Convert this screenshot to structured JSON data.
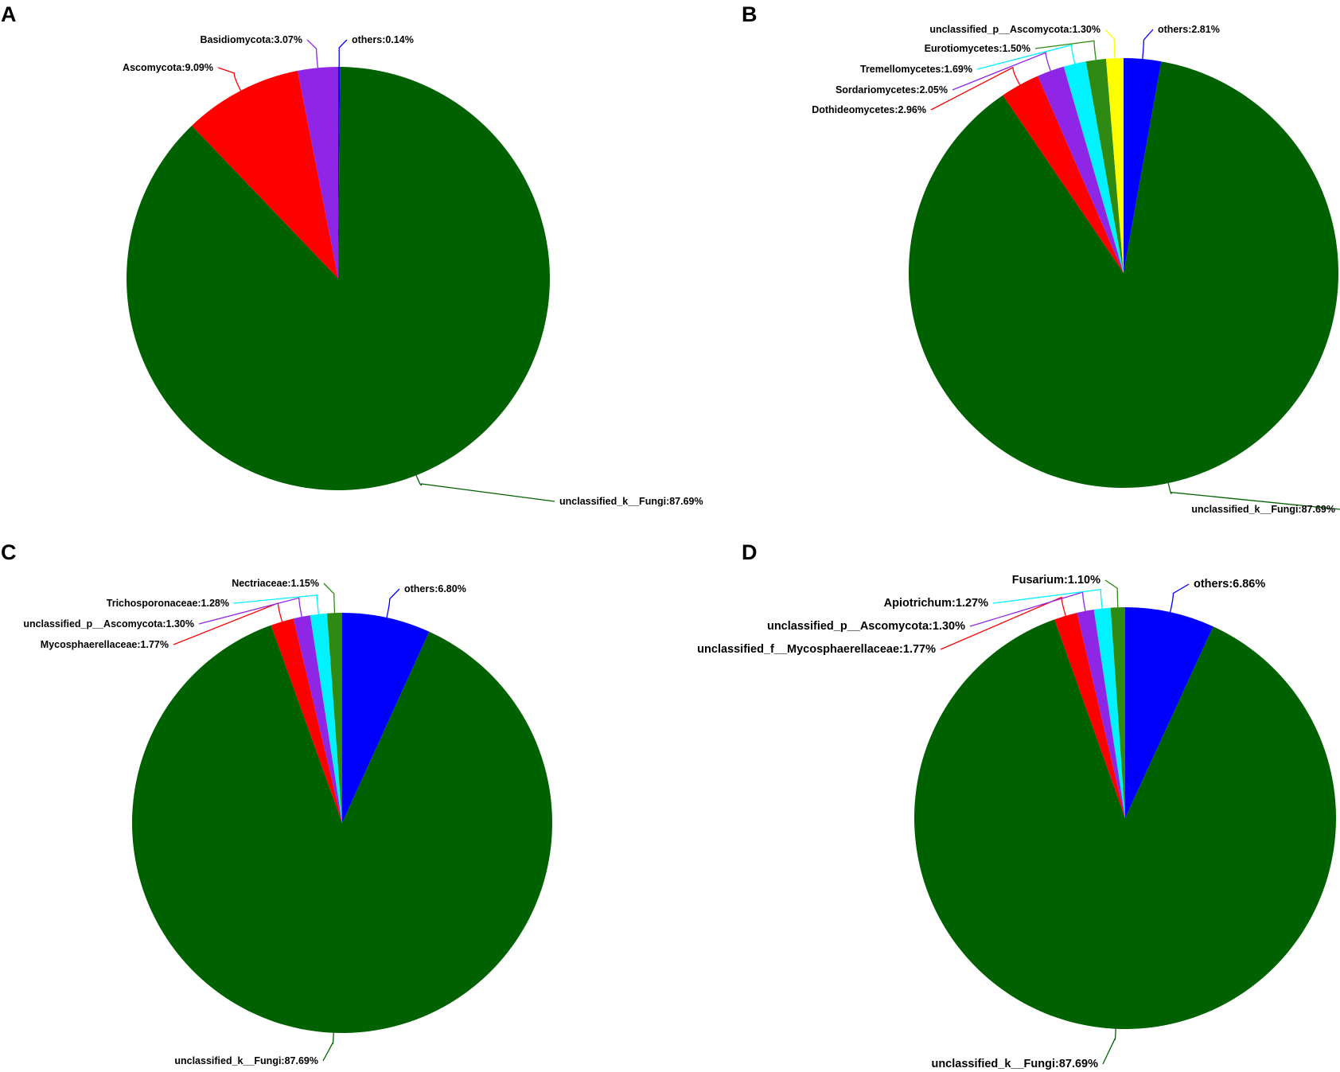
{
  "figure": {
    "panels": [
      "A",
      "B",
      "C",
      "D"
    ]
  },
  "chart_data": [
    {
      "panel": "A",
      "type": "pie",
      "slices": [
        {
          "label": "others:0.14%",
          "value": 0.14,
          "color": "#0000ff"
        },
        {
          "label": "unclassified_k__Fungi:87.69%",
          "value": 87.69,
          "color": "#006100"
        },
        {
          "label": "Ascomycota:9.09%",
          "value": 9.09,
          "color": "#ff0000"
        },
        {
          "label": "Basidiomycota:3.07%",
          "value": 3.07,
          "color": "#8f26e6"
        }
      ]
    },
    {
      "panel": "B",
      "type": "pie",
      "slices": [
        {
          "label": "others:2.81%",
          "value": 2.81,
          "color": "#0000ff"
        },
        {
          "label": "unclassified_k__Fungi:87.69%",
          "value": 87.69,
          "color": "#006100"
        },
        {
          "label": "Dothideomycetes:2.96%",
          "value": 2.96,
          "color": "#ff0000"
        },
        {
          "label": "Sordariomycetes:2.05%",
          "value": 2.05,
          "color": "#8f26e6"
        },
        {
          "label": "Tremellomycetes:1.69%",
          "value": 1.69,
          "color": "#00f2ff"
        },
        {
          "label": "Eurotiomycetes:1.50%",
          "value": 1.5,
          "color": "#2e8a12"
        },
        {
          "label": "unclassified_p__Ascomycota:1.30%",
          "value": 1.3,
          "color": "#ffff00"
        }
      ]
    },
    {
      "panel": "C",
      "type": "pie",
      "slices": [
        {
          "label": "others:6.80%",
          "value": 6.8,
          "color": "#0000ff"
        },
        {
          "label": "unclassified_k__Fungi:87.69%",
          "value": 87.69,
          "color": "#006100"
        },
        {
          "label": "Mycosphaerellaceae:1.77%",
          "value": 1.77,
          "color": "#ff0000"
        },
        {
          "label": "unclassified_p__Ascomycota:1.30%",
          "value": 1.3,
          "color": "#8f26e6"
        },
        {
          "label": "Trichosporonaceae:1.28%",
          "value": 1.28,
          "color": "#00f2ff"
        },
        {
          "label": "Nectriaceae:1.15%",
          "value": 1.15,
          "color": "#2e8a12"
        }
      ]
    },
    {
      "panel": "D",
      "type": "pie",
      "slices": [
        {
          "label": "others:6.86%",
          "value": 6.86,
          "color": "#0000ff"
        },
        {
          "label": "unclassified_k__Fungi:87.69%",
          "value": 87.69,
          "color": "#006100"
        },
        {
          "label": "unclassified_f__Mycosphaerellaceae:1.77%",
          "value": 1.77,
          "color": "#ff0000"
        },
        {
          "label": "unclassified_p__Ascomycota:1.30%",
          "value": 1.3,
          "color": "#8f26e6"
        },
        {
          "label": "Apiotrichum:1.27%",
          "value": 1.27,
          "color": "#00f2ff"
        },
        {
          "label": "Fusarium:1.10%",
          "value": 1.1,
          "color": "#2e8a12"
        }
      ]
    }
  ]
}
